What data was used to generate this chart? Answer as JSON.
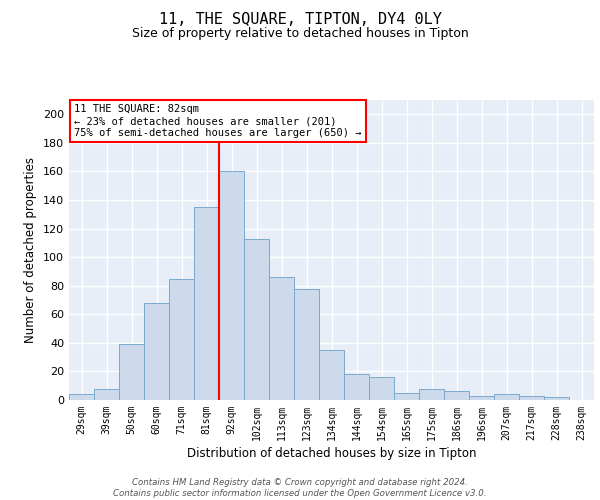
{
  "title": "11, THE SQUARE, TIPTON, DY4 0LY",
  "subtitle": "Size of property relative to detached houses in Tipton",
  "xlabel": "Distribution of detached houses by size in Tipton",
  "ylabel": "Number of detached properties",
  "bin_labels": [
    "29sqm",
    "39sqm",
    "50sqm",
    "60sqm",
    "71sqm",
    "81sqm",
    "92sqm",
    "102sqm",
    "113sqm",
    "123sqm",
    "134sqm",
    "144sqm",
    "154sqm",
    "165sqm",
    "175sqm",
    "186sqm",
    "196sqm",
    "207sqm",
    "217sqm",
    "228sqm",
    "238sqm"
  ],
  "bar_heights": [
    4,
    8,
    39,
    68,
    85,
    135,
    160,
    113,
    86,
    78,
    35,
    18,
    16,
    5,
    8,
    6,
    3,
    4,
    3,
    2,
    0
  ],
  "bar_color": "#ccdaeb",
  "bar_edge_color": "#7aaacc",
  "background_color": "#e8eef8",
  "grid_color": "#ffffff",
  "vline_x": 5.5,
  "vline_color": "red",
  "annotation_text": "11 THE SQUARE: 82sqm\n← 23% of detached houses are smaller (201)\n75% of semi-detached houses are larger (650) →",
  "annotation_box_color": "white",
  "annotation_box_edge": "red",
  "ylim": [
    0,
    210
  ],
  "yticks": [
    0,
    20,
    40,
    60,
    80,
    100,
    120,
    140,
    160,
    180,
    200
  ],
  "footer": "Contains HM Land Registry data © Crown copyright and database right 2024.\nContains public sector information licensed under the Open Government Licence v3.0."
}
